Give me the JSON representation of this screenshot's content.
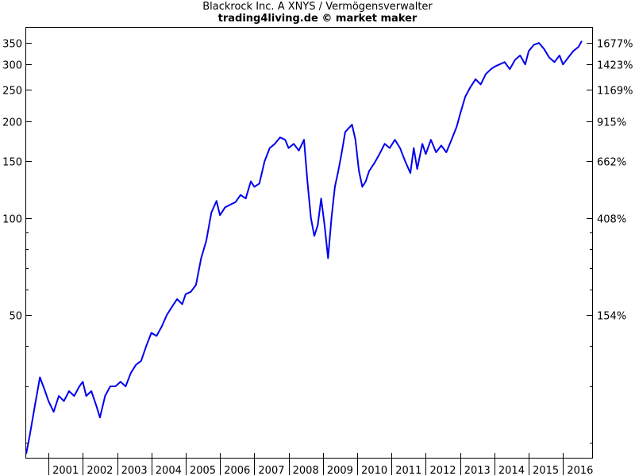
{
  "chart_data": {
    "type": "line",
    "title": "Blackrock Inc. A XNYS / Vermögensverwalter",
    "subtitle": "trading4living.de © market maker",
    "xlabel": "",
    "ylabel": "",
    "y_scale": "log",
    "ylim": [
      18,
      390
    ],
    "xlim": [
      2000.35,
      2016.85
    ],
    "grid": false,
    "x_tick_labels": [
      "2001",
      "2002",
      "2003",
      "2004",
      "2005",
      "2006",
      "2007",
      "2008",
      "2009",
      "2010",
      "2011",
      "2012",
      "2013",
      "2014",
      "2015",
      "2016"
    ],
    "y_tick_labels_left": [
      "50",
      "100",
      "150",
      "200",
      "250",
      "300",
      "350"
    ],
    "y_tick_labels_right": [
      "154%",
      "408%",
      "662%",
      "915%",
      "1169%",
      "1423%",
      "1677%"
    ],
    "line_color": "#0000ee",
    "series": [
      {
        "x": [
          2000.35,
          2000.45,
          2000.6,
          2000.75,
          2000.9,
          2001.0,
          2001.15,
          2001.3,
          2001.45,
          2001.6,
          2001.75,
          2001.9,
          2002.0,
          2002.1,
          2002.25,
          2002.4,
          2002.5,
          2002.65,
          2002.8,
          2002.95,
          2003.1,
          2003.25,
          2003.4,
          2003.55,
          2003.7,
          2003.85,
          2004.0,
          2004.15,
          2004.3,
          2004.45,
          2004.6,
          2004.75,
          2004.9,
          2005.0,
          2005.15,
          2005.3,
          2005.45,
          2005.6,
          2005.75,
          2005.9,
          2006.0,
          2006.15,
          2006.3,
          2006.45,
          2006.6,
          2006.75,
          2006.9,
          2007.0,
          2007.15,
          2007.3,
          2007.45,
          2007.6,
          2007.75,
          2007.9,
          2008.0,
          2008.15,
          2008.3,
          2008.45,
          2008.55,
          2008.65,
          2008.75,
          2008.85,
          2008.95,
          2009.05,
          2009.15,
          2009.25,
          2009.35,
          2009.45,
          2009.55,
          2009.65,
          2009.75,
          2009.85,
          2009.95,
          2010.05,
          2010.15,
          2010.25,
          2010.35,
          2010.5,
          2010.65,
          2010.8,
          2010.95,
          2011.1,
          2011.25,
          2011.4,
          2011.55,
          2011.65,
          2011.75,
          2011.9,
          2012.0,
          2012.15,
          2012.3,
          2012.45,
          2012.6,
          2012.75,
          2012.9,
          2013.0,
          2013.15,
          2013.3,
          2013.45,
          2013.6,
          2013.75,
          2013.9,
          2014.0,
          2014.15,
          2014.3,
          2014.45,
          2014.6,
          2014.75,
          2014.9,
          2015.0,
          2015.15,
          2015.3,
          2015.45,
          2015.6,
          2015.75,
          2015.9,
          2016.0,
          2016.15,
          2016.3,
          2016.45,
          2016.55
        ],
        "y": [
          18.5,
          21,
          26,
          32,
          29,
          27,
          25,
          28,
          27,
          29,
          28,
          30,
          31,
          28,
          29,
          26,
          24,
          28,
          30,
          30,
          31,
          30,
          33,
          35,
          36,
          40,
          44,
          43,
          46,
          50,
          53,
          56,
          54,
          58,
          59,
          62,
          75,
          85,
          104,
          113,
          102,
          108,
          110,
          112,
          118,
          115,
          130,
          125,
          128,
          150,
          165,
          170,
          178,
          175,
          165,
          170,
          162,
          175,
          130,
          100,
          88,
          95,
          115,
          95,
          75,
          100,
          125,
          140,
          160,
          185,
          190,
          195,
          175,
          140,
          125,
          130,
          140,
          148,
          158,
          170,
          165,
          175,
          165,
          150,
          138,
          165,
          142,
          170,
          158,
          175,
          160,
          168,
          160,
          175,
          192,
          210,
          238,
          255,
          270,
          260,
          280,
          290,
          295,
          300,
          305,
          290,
          310,
          320,
          300,
          330,
          345,
          350,
          335,
          315,
          305,
          320,
          300,
          315,
          330,
          340,
          355
        ]
      }
    ]
  }
}
